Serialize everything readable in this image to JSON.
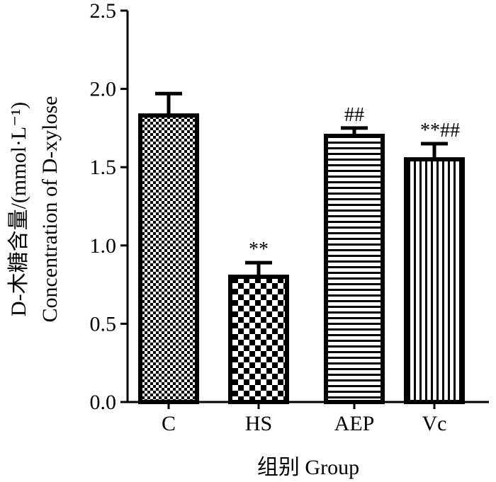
{
  "chart_data": {
    "type": "bar",
    "categories": [
      "C",
      "HS",
      "AEP",
      "Vc"
    ],
    "series": [
      {
        "values": [
          1.83,
          0.8,
          1.7,
          1.55
        ],
        "errors": [
          0.14,
          0.09,
          0.05,
          0.1
        ]
      }
    ],
    "annotations": [
      "",
      "**",
      "##",
      "**##"
    ],
    "patterns": [
      "fine-checker",
      "large-checker",
      "horizontal-stripes",
      "vertical-stripes"
    ],
    "xlabel": "组别 Group",
    "ylabel_line1": "D-木糖含量/(mmol·L⁻¹)",
    "ylabel_line2": "Concentration of D-xylose",
    "ylim": [
      0,
      2.5
    ],
    "yticks": [
      "0.0",
      "0.5",
      "1.0",
      "1.5",
      "2.0",
      "2.5"
    ],
    "grid": false,
    "colors": {
      "bar_edge": "#000000",
      "fill": "#000000",
      "background": "#ffffff"
    }
  }
}
